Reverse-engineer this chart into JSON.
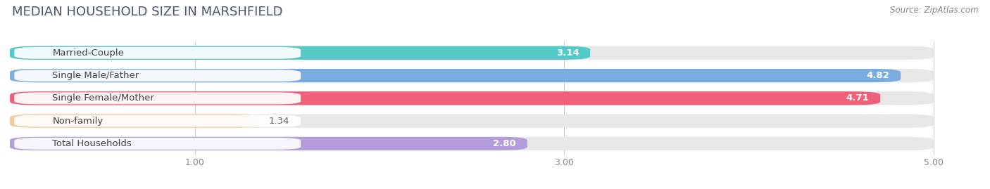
{
  "title": "MEDIAN HOUSEHOLD SIZE IN MARSHFIELD",
  "source": "Source: ZipAtlas.com",
  "categories": [
    "Married-Couple",
    "Single Male/Father",
    "Single Female/Mother",
    "Non-family",
    "Total Households"
  ],
  "values": [
    3.14,
    4.82,
    4.71,
    1.34,
    2.8
  ],
  "colors": [
    "#55c8c8",
    "#7aaddf",
    "#f0607a",
    "#f5c99a",
    "#b39ddb"
  ],
  "xlim_data": [
    0,
    5.3
  ],
  "xmin": 0,
  "xmax": 5.0,
  "xticks": [
    1.0,
    3.0,
    5.0
  ],
  "background_color": "#ffffff",
  "bar_background": "#e8e8e8",
  "title_color": "#4a5568",
  "source_color": "#888888",
  "label_fontsize": 9.5,
  "value_fontsize": 9.5,
  "title_fontsize": 13
}
